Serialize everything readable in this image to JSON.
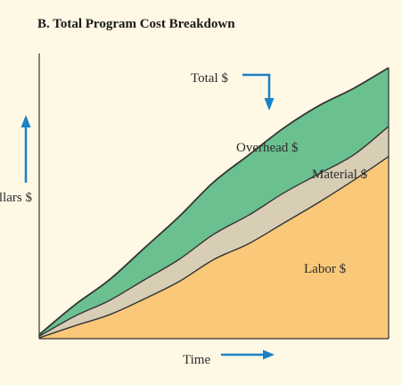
{
  "chart_data": {
    "type": "area",
    "stacked": true,
    "title": "B. Total Program Cost Breakdown",
    "xlabel": "Time",
    "ylabel": "Dollars $",
    "x": [
      0,
      1,
      2,
      3,
      4,
      5,
      6,
      7,
      8,
      9,
      10
    ],
    "series": [
      {
        "name": "Labor $",
        "color": "#f9c879",
        "values": [
          0.05,
          0.8,
          1.5,
          2.5,
          3.6,
          5.0,
          6.0,
          7.3,
          8.6,
          10.0,
          11.5
        ]
      },
      {
        "name": "Material $",
        "color": "#d8cdb5",
        "values": [
          0.1,
          0.6,
          0.9,
          1.2,
          1.4,
          1.6,
          1.8,
          1.9,
          1.8,
          1.6,
          1.9
        ]
      },
      {
        "name": "Overhead $",
        "color": "#6bc08f",
        "values": [
          0.1,
          0.7,
          1.3,
          2.0,
          2.7,
          3.3,
          3.8,
          4.1,
          4.3,
          4.2,
          3.7
        ]
      }
    ],
    "total_label": "Total $",
    "ylim": [
      0,
      18
    ],
    "xlim": [
      0,
      10
    ],
    "legend": "inline labels",
    "grid": false,
    "axes_color": "#333333",
    "arrow_color": "#1a80c8"
  }
}
